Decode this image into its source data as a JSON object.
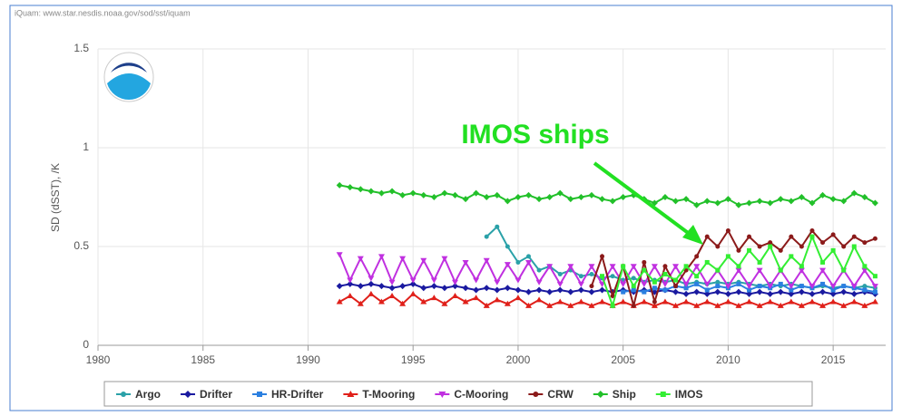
{
  "source": "iQuam: www.star.nesdis.noaa.gov/sod/sst/iquam",
  "chart_data": {
    "type": "line",
    "ylabel": "SD (dSST), /K",
    "annotation": "IMOS ships",
    "xlim": [
      1980,
      2017.5
    ],
    "xticks": [
      1980,
      1985,
      1990,
      1995,
      2000,
      2005,
      2010,
      2015
    ],
    "ylim": [
      0,
      1.5
    ],
    "yticks": [
      0,
      0.5,
      1,
      1.5
    ],
    "grid": true,
    "legend": "bottom",
    "x": [
      1991.5,
      1992,
      1992.5,
      1993,
      1993.5,
      1994,
      1994.5,
      1995,
      1995.5,
      1996,
      1996.5,
      1997,
      1997.5,
      1998,
      1998.5,
      1999,
      1999.5,
      2000,
      2000.5,
      2001,
      2001.5,
      2002,
      2002.5,
      2003,
      2003.5,
      2004,
      2004.5,
      2005,
      2005.5,
      2006,
      2006.5,
      2007,
      2007.5,
      2008,
      2008.5,
      2009,
      2009.5,
      2010,
      2010.5,
      2011,
      2011.5,
      2012,
      2012.5,
      2013,
      2013.5,
      2014,
      2014.5,
      2015,
      2015.5,
      2016,
      2016.5,
      2017
    ],
    "series": [
      {
        "name": "Argo",
        "color": "#2aa1a8",
        "marker": "circle",
        "values": [
          null,
          null,
          null,
          null,
          null,
          null,
          null,
          null,
          null,
          null,
          null,
          null,
          null,
          null,
          0.55,
          0.6,
          0.5,
          0.42,
          0.45,
          0.38,
          0.4,
          0.36,
          0.38,
          0.35,
          0.36,
          0.34,
          0.35,
          0.33,
          0.34,
          0.32,
          0.33,
          0.32,
          0.33,
          0.31,
          0.32,
          0.31,
          0.32,
          0.31,
          0.32,
          0.31,
          0.3,
          0.31,
          0.3,
          0.31,
          0.3,
          0.29,
          0.3,
          0.29,
          0.3,
          0.29,
          0.3,
          0.29
        ]
      },
      {
        "name": "Drifter",
        "color": "#1a1aa0",
        "marker": "diamond",
        "values": [
          0.3,
          0.31,
          0.3,
          0.31,
          0.3,
          0.29,
          0.3,
          0.31,
          0.29,
          0.3,
          0.29,
          0.3,
          0.29,
          0.28,
          0.29,
          0.28,
          0.29,
          0.28,
          0.27,
          0.28,
          0.27,
          0.28,
          0.27,
          0.28,
          0.27,
          0.28,
          0.27,
          0.28,
          0.27,
          0.28,
          0.27,
          0.28,
          0.27,
          0.26,
          0.27,
          0.26,
          0.27,
          0.26,
          0.27,
          0.26,
          0.27,
          0.26,
          0.27,
          0.26,
          0.27,
          0.26,
          0.27,
          0.26,
          0.27,
          0.26,
          0.27,
          0.26
        ]
      },
      {
        "name": "HR-Drifter",
        "color": "#2b7fe0",
        "marker": "square",
        "values": [
          null,
          null,
          null,
          null,
          null,
          null,
          null,
          null,
          null,
          null,
          null,
          null,
          null,
          null,
          null,
          null,
          null,
          null,
          null,
          null,
          null,
          null,
          null,
          null,
          null,
          null,
          null,
          0.27,
          0.28,
          0.27,
          0.29,
          0.28,
          0.3,
          0.29,
          0.31,
          0.28,
          0.3,
          0.29,
          0.31,
          0.28,
          0.3,
          0.29,
          0.31,
          0.28,
          0.3,
          0.29,
          0.31,
          0.28,
          0.3,
          0.29,
          0.28,
          0.27
        ]
      },
      {
        "name": "T-Mooring",
        "color": "#e0201a",
        "marker": "triangle",
        "values": [
          0.22,
          0.25,
          0.21,
          0.26,
          0.22,
          0.25,
          0.21,
          0.26,
          0.22,
          0.24,
          0.21,
          0.25,
          0.22,
          0.24,
          0.2,
          0.23,
          0.21,
          0.24,
          0.2,
          0.23,
          0.2,
          0.22,
          0.2,
          0.22,
          0.2,
          0.22,
          0.2,
          0.22,
          0.2,
          0.22,
          0.2,
          0.22,
          0.2,
          0.22,
          0.2,
          0.22,
          0.2,
          0.22,
          0.2,
          0.22,
          0.2,
          0.22,
          0.2,
          0.22,
          0.2,
          0.22,
          0.2,
          0.22,
          0.2,
          0.22,
          0.2,
          0.22
        ]
      },
      {
        "name": "C-Mooring",
        "color": "#c030e0",
        "marker": "triangle-down",
        "values": [
          0.46,
          0.33,
          0.44,
          0.34,
          0.45,
          0.32,
          0.44,
          0.33,
          0.43,
          0.33,
          0.44,
          0.32,
          0.42,
          0.33,
          0.43,
          0.32,
          0.41,
          0.33,
          0.42,
          0.32,
          0.4,
          0.31,
          0.4,
          0.31,
          0.4,
          0.31,
          0.4,
          0.31,
          0.4,
          0.31,
          0.4,
          0.31,
          0.4,
          0.31,
          0.4,
          0.31,
          0.38,
          0.3,
          0.38,
          0.3,
          0.38,
          0.3,
          0.38,
          0.3,
          0.38,
          0.3,
          0.38,
          0.3,
          0.38,
          0.3,
          0.38,
          0.3
        ]
      },
      {
        "name": "CRW",
        "color": "#8b1a1a",
        "marker": "circle",
        "values": [
          null,
          null,
          null,
          null,
          null,
          null,
          null,
          null,
          null,
          null,
          null,
          null,
          null,
          null,
          null,
          null,
          null,
          null,
          null,
          null,
          null,
          null,
          null,
          null,
          0.3,
          0.45,
          0.25,
          0.4,
          0.2,
          0.42,
          0.22,
          0.4,
          0.3,
          0.38,
          0.45,
          0.55,
          0.5,
          0.58,
          0.48,
          0.55,
          0.5,
          0.52,
          0.48,
          0.55,
          0.5,
          0.58,
          0.52,
          0.56,
          0.5,
          0.55,
          0.52,
          0.54
        ]
      },
      {
        "name": "Ship",
        "color": "#22c02a",
        "marker": "diamond",
        "values": [
          0.81,
          0.8,
          0.79,
          0.78,
          0.77,
          0.78,
          0.76,
          0.77,
          0.76,
          0.75,
          0.77,
          0.76,
          0.74,
          0.77,
          0.75,
          0.76,
          0.73,
          0.75,
          0.76,
          0.74,
          0.75,
          0.77,
          0.74,
          0.75,
          0.76,
          0.74,
          0.73,
          0.75,
          0.76,
          0.74,
          0.72,
          0.75,
          0.73,
          0.74,
          0.71,
          0.73,
          0.72,
          0.74,
          0.71,
          0.72,
          0.73,
          0.72,
          0.74,
          0.73,
          0.75,
          0.72,
          0.76,
          0.74,
          0.73,
          0.77,
          0.75,
          0.72
        ]
      },
      {
        "name": "IMOS",
        "color": "#33ee33",
        "marker": "square",
        "values": [
          null,
          null,
          null,
          null,
          null,
          null,
          null,
          null,
          null,
          null,
          null,
          null,
          null,
          null,
          null,
          null,
          null,
          null,
          null,
          null,
          null,
          null,
          null,
          null,
          null,
          0.35,
          0.2,
          0.4,
          0.3,
          0.38,
          0.32,
          0.36,
          0.33,
          0.4,
          0.35,
          0.42,
          0.38,
          0.45,
          0.4,
          0.48,
          0.42,
          0.5,
          0.38,
          0.45,
          0.4,
          0.55,
          0.42,
          0.48,
          0.38,
          0.5,
          0.4,
          0.35
        ]
      }
    ]
  }
}
